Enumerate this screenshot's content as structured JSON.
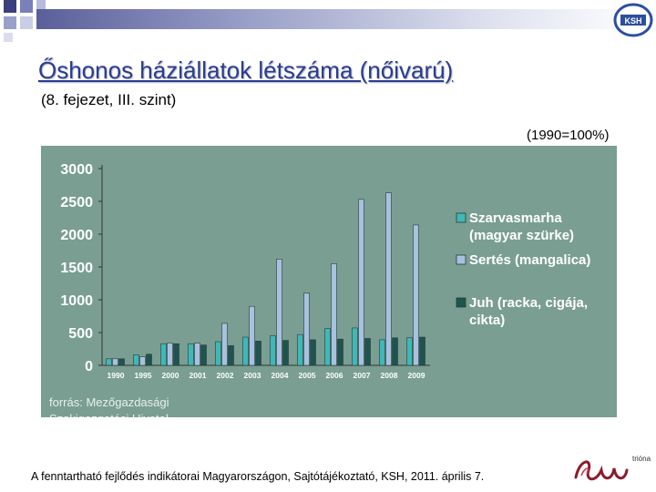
{
  "slide": {
    "title": "Őshonos háziállatok létszáma (nőivarú)",
    "subtitle": "(8. fejezet, III. szint)",
    "basis_note": "(1990=100%)",
    "source": "forrás: Mezőgazdasági Szakigazgatási Hivatal",
    "footer": "A fenntartható fejlődés indikátorai Magyarországon, Sajtótájékoztató, KSH, 2011. április 7.",
    "logo_ksh_text": "KSH",
    "logo_triono_text": "trióna"
  },
  "colors": {
    "chart_bg": "#7a9e92",
    "series1": "#3fb8b8",
    "series2": "#a7c1df",
    "series3": "#1e5450",
    "title": "#2b3c8f"
  },
  "chart_data": {
    "type": "bar",
    "categories": [
      "1990",
      "1995",
      "2000",
      "2001",
      "2002",
      "2003",
      "2004",
      "2005",
      "2006",
      "2007",
      "2008",
      "2009"
    ],
    "series": [
      {
        "name": "Szarvasmarha (magyar szürke)",
        "values": [
          100,
          160,
          330,
          330,
          360,
          430,
          450,
          470,
          560,
          570,
          390,
          420
        ]
      },
      {
        "name": "Sertés (mangalica)",
        "values": [
          100,
          130,
          340,
          340,
          640,
          900,
          1620,
          1100,
          1550,
          2530,
          2630,
          2140
        ]
      },
      {
        "name": "Juh (racka, cigája, cikta)",
        "values": [
          100,
          170,
          330,
          310,
          300,
          370,
          380,
          390,
          400,
          410,
          420,
          430
        ]
      }
    ],
    "yticks": [
      "0",
      "500",
      "1000",
      "1500",
      "2000",
      "2500",
      "3000"
    ],
    "ylim": [
      0,
      3000
    ],
    "legend_position": "right"
  }
}
